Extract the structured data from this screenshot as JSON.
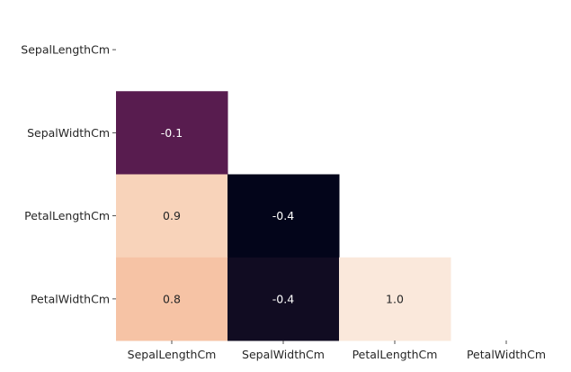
{
  "chart_data": {
    "type": "heatmap",
    "title": "",
    "xlabel": "",
    "ylabel": "",
    "mask": "upper-triangle-including-diagonal",
    "colorbar": false,
    "colormap": "rocket",
    "vmin": -0.4,
    "vmax": 1.0,
    "x_categories": [
      "SepalLengthCm",
      "SepalWidthCm",
      "PetalLengthCm",
      "PetalWidthCm"
    ],
    "y_categories": [
      "SepalLengthCm",
      "SepalWidthCm",
      "PetalLengthCm",
      "PetalWidthCm"
    ],
    "cells": [
      {
        "row": 1,
        "col": 0,
        "value": -0.1,
        "label": "-0.1",
        "color": "#581c4f"
      },
      {
        "row": 2,
        "col": 0,
        "value": 0.9,
        "label": "0.9",
        "color": "#f8d3ba"
      },
      {
        "row": 2,
        "col": 1,
        "value": -0.4,
        "label": "-0.4",
        "color": "#03051a"
      },
      {
        "row": 3,
        "col": 0,
        "value": 0.8,
        "label": "0.8",
        "color": "#f6c3a5"
      },
      {
        "row": 3,
        "col": 1,
        "value": -0.4,
        "label": "-0.4",
        "color": "#110c22"
      },
      {
        "row": 3,
        "col": 2,
        "value": 1.0,
        "label": "1.0",
        "color": "#fae8db"
      }
    ]
  }
}
